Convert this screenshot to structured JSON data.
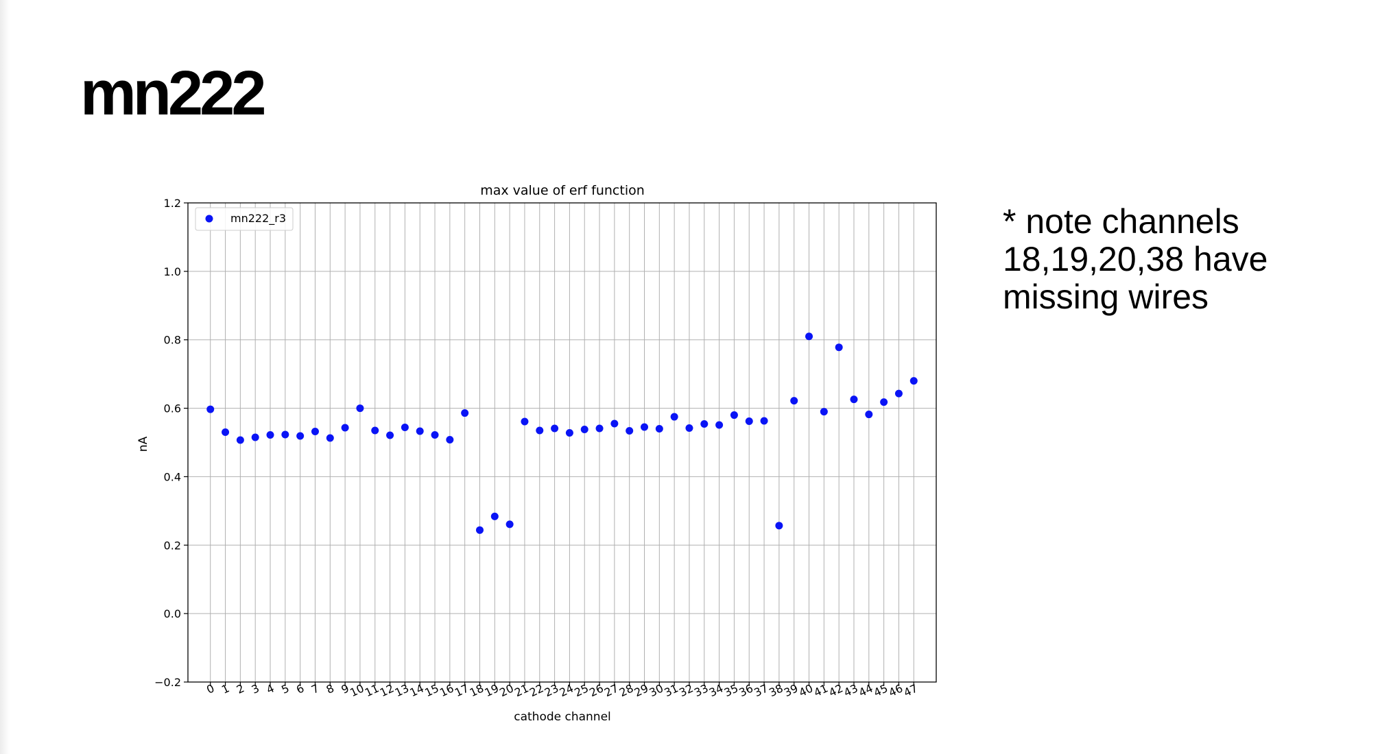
{
  "slide": {
    "title": "mn222",
    "note": "* note channels 18,19,20,38 have missing wires"
  },
  "chart_data": {
    "type": "scatter",
    "title": "max value of erf function",
    "xlabel": "cathode channel",
    "ylabel": "nA",
    "ylim": [
      -0.2,
      1.2
    ],
    "yticks": [
      -0.2,
      0.0,
      0.2,
      0.4,
      0.6,
      0.8,
      1.0,
      1.2
    ],
    "ytick_labels": [
      "−0.2",
      "0.0",
      "0.2",
      "0.4",
      "0.6",
      "0.8",
      "1.0",
      "1.2"
    ],
    "xlim": [
      -1.5,
      48.5
    ],
    "x": [
      0,
      1,
      2,
      3,
      4,
      5,
      6,
      7,
      8,
      9,
      10,
      11,
      12,
      13,
      14,
      15,
      16,
      17,
      18,
      19,
      20,
      21,
      22,
      23,
      24,
      25,
      26,
      27,
      28,
      29,
      30,
      31,
      32,
      33,
      34,
      35,
      36,
      37,
      38,
      39,
      40,
      41,
      42,
      43,
      44,
      45,
      46,
      47
    ],
    "xtick_labels": [
      "0",
      "1",
      "2",
      "3",
      "4",
      "5",
      "6",
      "7",
      "8",
      "9",
      "10",
      "11",
      "12",
      "13",
      "14",
      "15",
      "16",
      "17",
      "18",
      "19",
      "20",
      "21",
      "22",
      "23",
      "24",
      "25",
      "26",
      "27",
      "28",
      "29",
      "30",
      "31",
      "32",
      "33",
      "34",
      "35",
      "36",
      "37",
      "38",
      "39",
      "40",
      "41",
      "42",
      "43",
      "44",
      "45",
      "46",
      "47"
    ],
    "grid": true,
    "legend_position": "upper-left",
    "series": [
      {
        "name": "mn222_r3",
        "color": "#0a14f5",
        "values": [
          0.597,
          0.53,
          0.507,
          0.515,
          0.522,
          0.523,
          0.519,
          0.532,
          0.513,
          0.543,
          0.6,
          0.535,
          0.521,
          0.544,
          0.533,
          0.522,
          0.508,
          0.586,
          0.244,
          0.284,
          0.261,
          0.561,
          0.535,
          0.541,
          0.528,
          0.538,
          0.541,
          0.555,
          0.534,
          0.545,
          0.54,
          0.575,
          0.542,
          0.554,
          0.551,
          0.58,
          0.562,
          0.563,
          0.257,
          0.622,
          0.81,
          0.59,
          0.778,
          0.626,
          0.582,
          0.618,
          0.643,
          0.68
        ]
      }
    ]
  }
}
